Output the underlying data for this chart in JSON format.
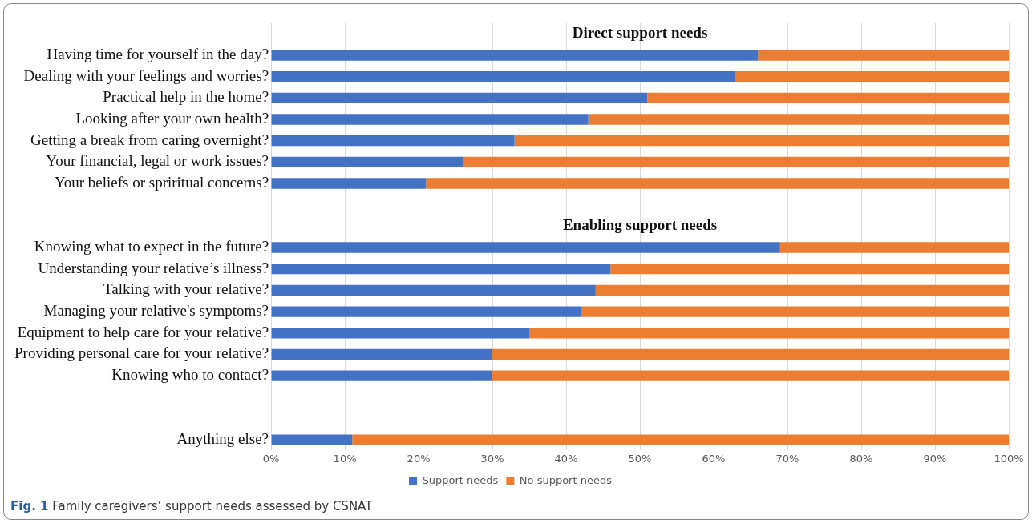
{
  "chart_data": {
    "type": "bar",
    "orientation": "horizontal",
    "stacked": true,
    "categories": [
      null,
      "Having time for yourself in the day?",
      "Dealing with your feelings and worries?",
      "Practical help in the home?",
      "Looking after your own health?",
      "Getting a break from caring overnight?",
      "Your financial, legal or work issues?",
      "Your beliefs or spriritual concerns?",
      null,
      null,
      "Knowing what to expect in the future?",
      "Understanding your relative’s illness?",
      "Talking with your relative?",
      "Managing your relative's symptoms?",
      "Equipment to help care for your relative?",
      "Providing personal care for your relative?",
      "Knowing who to contact?",
      null,
      null,
      "Anything else?"
    ],
    "series": [
      {
        "name": "Support needs",
        "color": "#4472c4",
        "values": [
          null,
          66,
          63,
          51,
          43,
          33,
          26,
          21,
          null,
          null,
          69,
          46,
          44,
          42,
          35,
          30,
          30,
          null,
          null,
          11
        ]
      },
      {
        "name": "No support needs",
        "color": "#ed7d31",
        "values": [
          null,
          34,
          37,
          49,
          57,
          67,
          74,
          79,
          null,
          null,
          31,
          54,
          56,
          58,
          65,
          70,
          70,
          null,
          null,
          89
        ]
      }
    ],
    "xlim": [
      0,
      100
    ],
    "xticks": [
      {
        "value": 0,
        "label": "0%"
      },
      {
        "value": 10,
        "label": "10%"
      },
      {
        "value": 20,
        "label": "20%"
      },
      {
        "value": 30,
        "label": "30%"
      },
      {
        "value": 40,
        "label": "40%"
      },
      {
        "value": 50,
        "label": "50%"
      },
      {
        "value": 60,
        "label": "60%"
      },
      {
        "value": 70,
        "label": "70%"
      },
      {
        "value": 80,
        "label": "80%"
      },
      {
        "value": 90,
        "label": "90%"
      },
      {
        "value": 100,
        "label": "100%"
      }
    ],
    "grid": "x",
    "legend": "bottom",
    "annotations": [
      "Direct support needs",
      "Enabling support needs",
      "Fig. 1 Family caregivers’ support needs assessed by CSNAT"
    ]
  }
}
